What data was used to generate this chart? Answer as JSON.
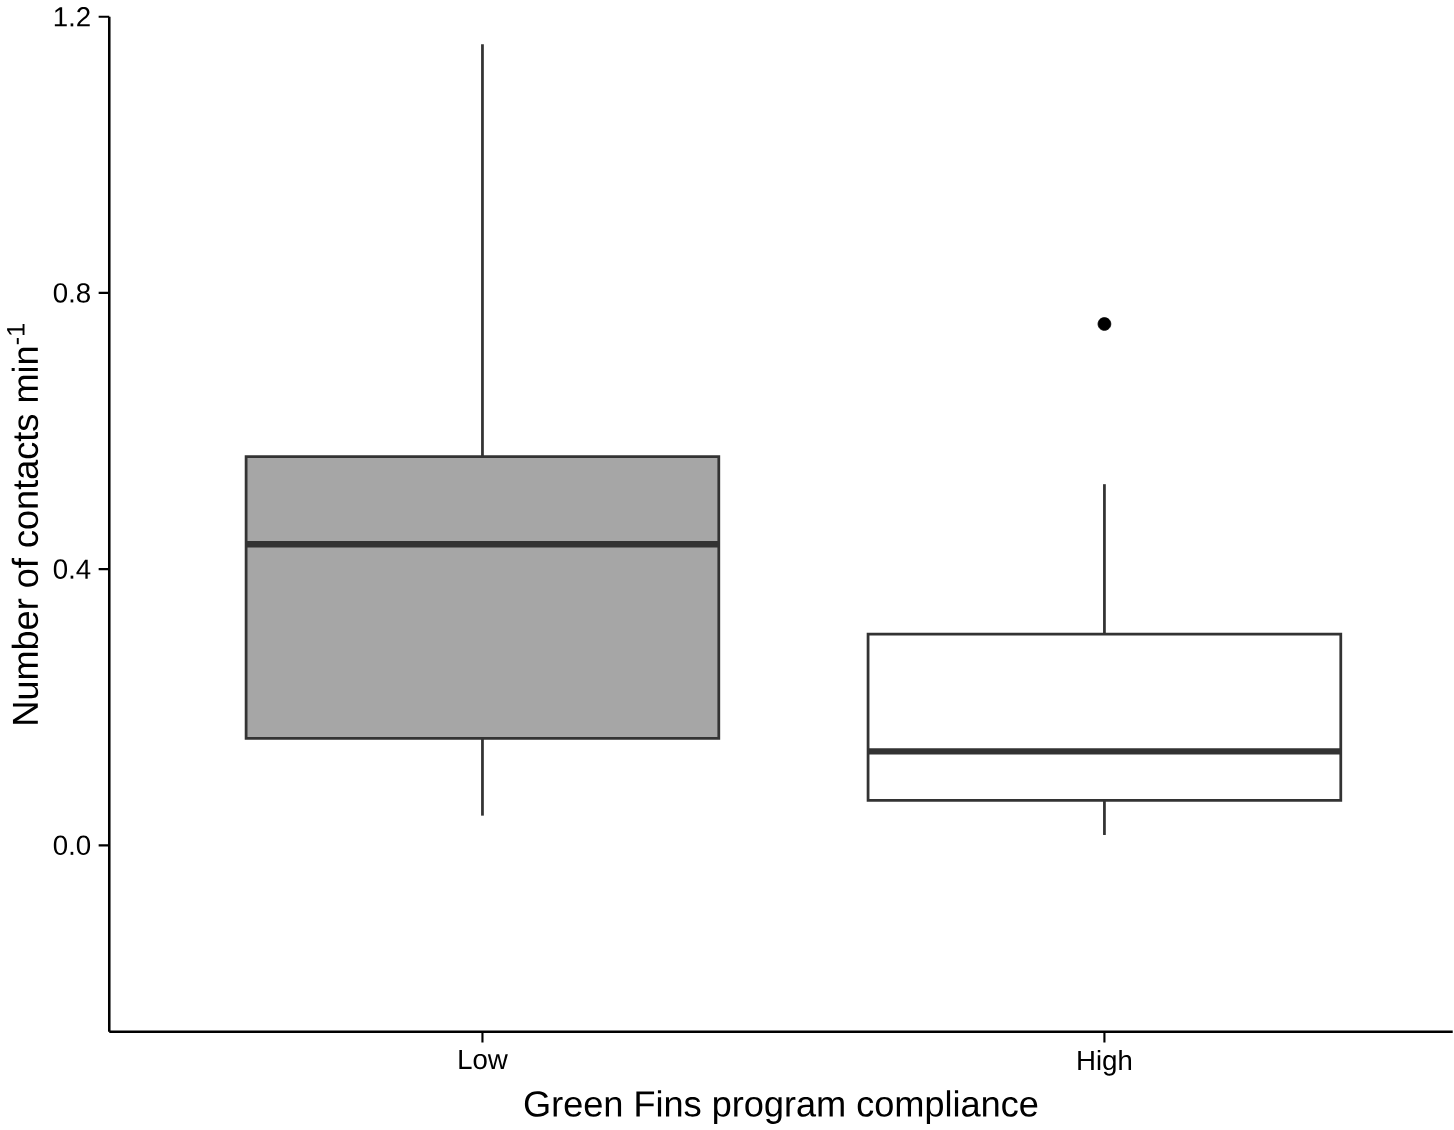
{
  "chart_data": {
    "type": "box",
    "xlabel": "Green Fins program compliance",
    "ylabel": "Number of contacts min$^{-1}$",
    "categories": [
      "Low",
      "High"
    ],
    "boxes": [
      {
        "low": 0.043,
        "q1": 0.155,
        "median": 0.436,
        "q3": 0.563,
        "high": 1.16
      },
      {
        "low": 0.015,
        "q1": 0.065,
        "median": 0.136,
        "q3": 0.306,
        "high": 0.523,
        "outliers": [
          0.755
        ]
      }
    ],
    "colors": [
      "#a6a6a6",
      "#ffffff"
    ],
    "ylim": [
      -0.27,
      1.2
    ],
    "yticks": [
      {
        "value": 0,
        "label": "0.0"
      },
      0.4,
      0.8,
      1.2
    ]
  }
}
